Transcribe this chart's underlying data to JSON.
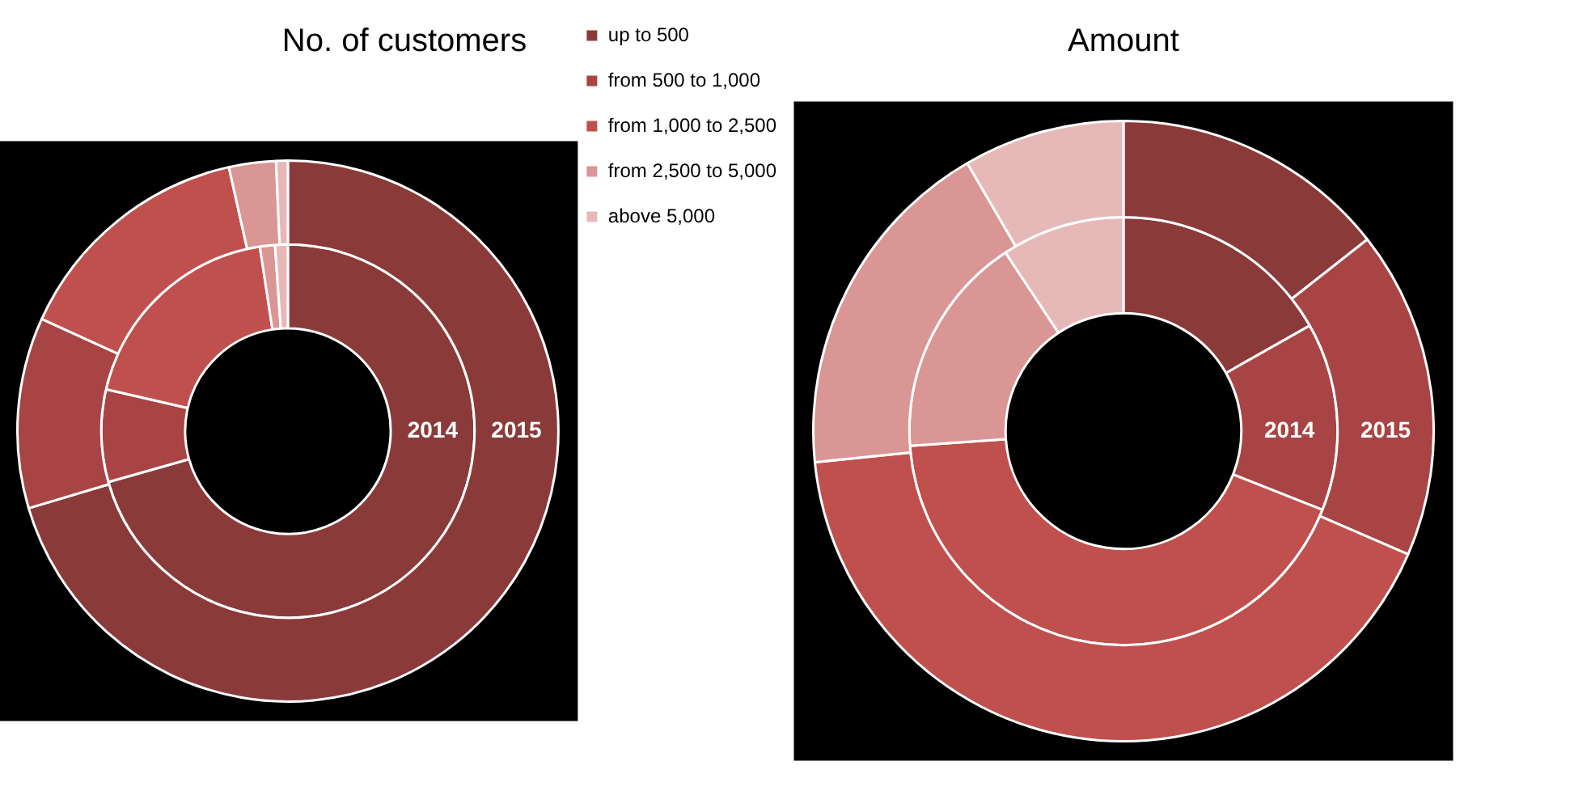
{
  "chart_data": [
    {
      "type": "donut",
      "title": "No. of customers",
      "categories": [
        "up to 500",
        "from 500 to 1,000",
        "from 1,000 to 2,500",
        "from 2,500 to 5,000",
        "above 5,000"
      ],
      "colors": [
        "#8b3a3a",
        "#a94444",
        "#c0504d",
        "#d99694",
        "#e6b9b8"
      ],
      "legend": "right",
      "series": [
        {
          "name": "2014",
          "values": [
            70.6,
            8.0,
            19.0,
            1.3,
            1.1
          ]
        },
        {
          "name": "2015",
          "values": [
            70.4,
            11.4,
            14.7,
            2.8,
            0.7
          ]
        }
      ]
    },
    {
      "type": "donut",
      "title": "Amount",
      "categories": [
        null,
        null,
        null,
        null,
        null
      ],
      "colors": [
        "#8b3a3a",
        "#a94444",
        "#c0504d",
        "#d99694",
        "#e6b9b8"
      ],
      "series": [
        {
          "name": "2014",
          "values": [
            16.8,
            14.2,
            42.9,
            16.8,
            9.3
          ]
        },
        {
          "name": "2015",
          "values": [
            14.4,
            17.1,
            41.9,
            18.2,
            8.4
          ]
        }
      ]
    }
  ]
}
